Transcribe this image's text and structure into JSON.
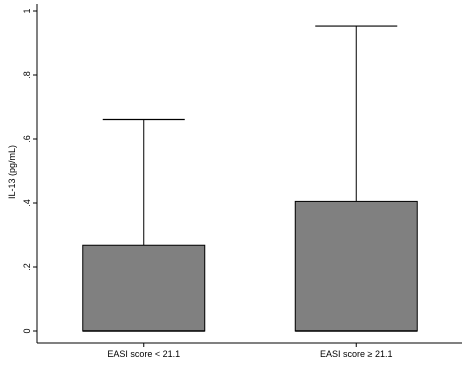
{
  "chart_data": {
    "type": "box",
    "ylabel": "IL-13 (pg/mL)",
    "xlabel": "",
    "ylim": [
      0,
      1
    ],
    "yticks": [
      0,
      0.2,
      0.4,
      0.6,
      0.8,
      1
    ],
    "ytick_labels": [
      "0",
      ".2",
      ".4",
      ".6",
      ".8",
      "1"
    ],
    "categories": [
      "EASI score < 21.1",
      "EASI score ≥ 21.1"
    ],
    "boxes": [
      {
        "category": "EASI score < 21.1",
        "min": 0,
        "q1": 0,
        "median": 0,
        "q3": 0.268,
        "whisker_high": 0.661
      },
      {
        "category": "EASI score ≥ 21.1",
        "min": 0,
        "q1": 0,
        "median": 0,
        "q3": 0.405,
        "whisker_high": 0.953
      }
    ],
    "grid": false,
    "colors": {
      "box_fill": "#808080",
      "stroke": "#000000",
      "background": "#ffffff"
    }
  }
}
